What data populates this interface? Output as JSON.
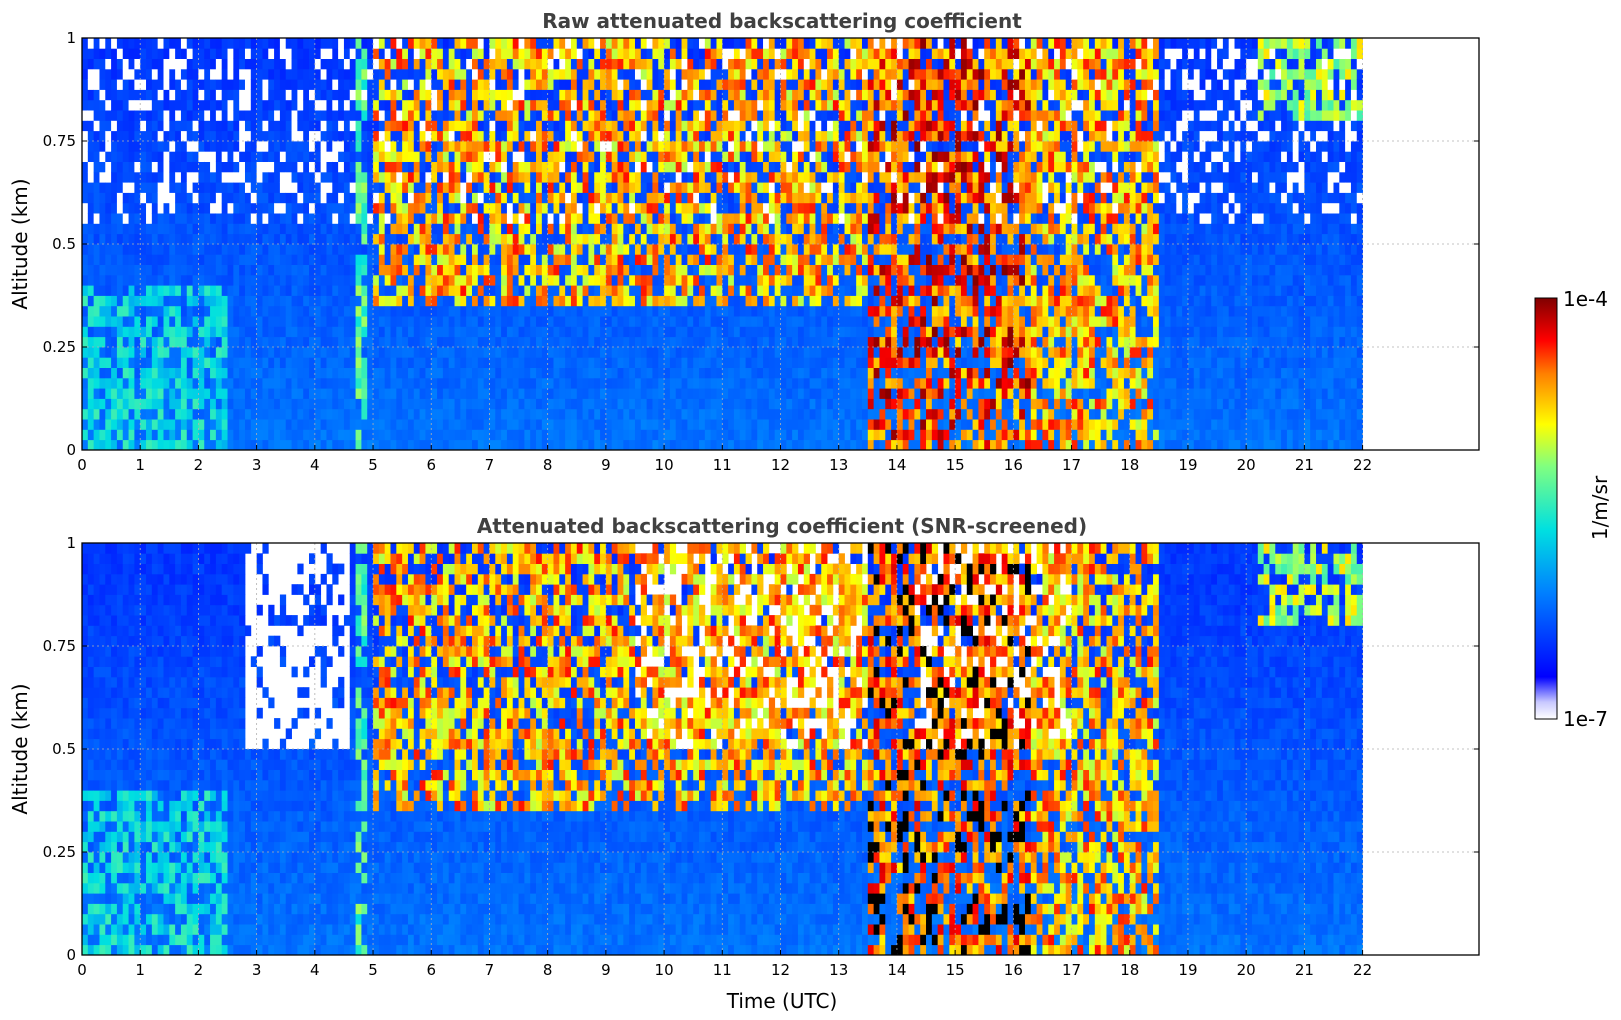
{
  "chart_data": {
    "type": "heatmap",
    "panels": [
      {
        "title": "Raw attenuated backscattering coefficient",
        "ylabel": "Altitude (km)",
        "xlabel": "",
        "screened": false
      },
      {
        "title": "Attenuated backscattering coefficient (SNR-screened)",
        "ylabel": "Altitude (km)",
        "xlabel": "Time (UTC)",
        "screened": true
      }
    ],
    "x_ticks": [
      "0",
      "1",
      "2",
      "3",
      "4",
      "5",
      "6",
      "7",
      "8",
      "9",
      "10",
      "11",
      "12",
      "13",
      "14",
      "15",
      "16",
      "17",
      "18",
      "19",
      "20",
      "21",
      "22"
    ],
    "y_ticks": [
      "0",
      "0.25",
      "0.5",
      "0.75",
      "1"
    ],
    "xlim": [
      0,
      24
    ],
    "ylim": [
      0,
      1
    ],
    "data_time_range": [
      0,
      22
    ],
    "grid": true,
    "colorbar": {
      "label": "1/m/sr",
      "max_label": "1e-4",
      "min_label": "1e-7",
      "scale": "log",
      "range": [
        1e-07,
        0.0001
      ],
      "colormap": "jet"
    },
    "features": [
      {
        "name": "aerosol layer",
        "time": [
          0,
          2.5
        ],
        "altitude": [
          0,
          0.4
        ],
        "level": 0.5
      },
      {
        "name": "thin vertical band",
        "time": [
          4.75,
          4.85
        ],
        "altitude": [
          0,
          1
        ],
        "level": 0.6
      },
      {
        "name": "cloud patches",
        "time": [
          5,
          13.5
        ],
        "altitude": [
          0.35,
          1
        ],
        "level": 0.85
      },
      {
        "name": "dense clouds / precipitation",
        "time": [
          13.5,
          16.3
        ],
        "altitude": [
          0,
          1
        ],
        "level": 0.95
      },
      {
        "name": "cloud bands",
        "time": [
          16.3,
          18.5
        ],
        "altitude": [
          0,
          1
        ],
        "level": 0.85
      },
      {
        "name": "scattered clouds",
        "time": [
          20.2,
          22
        ],
        "altitude": [
          0.8,
          1
        ],
        "level": 0.7
      }
    ]
  }
}
